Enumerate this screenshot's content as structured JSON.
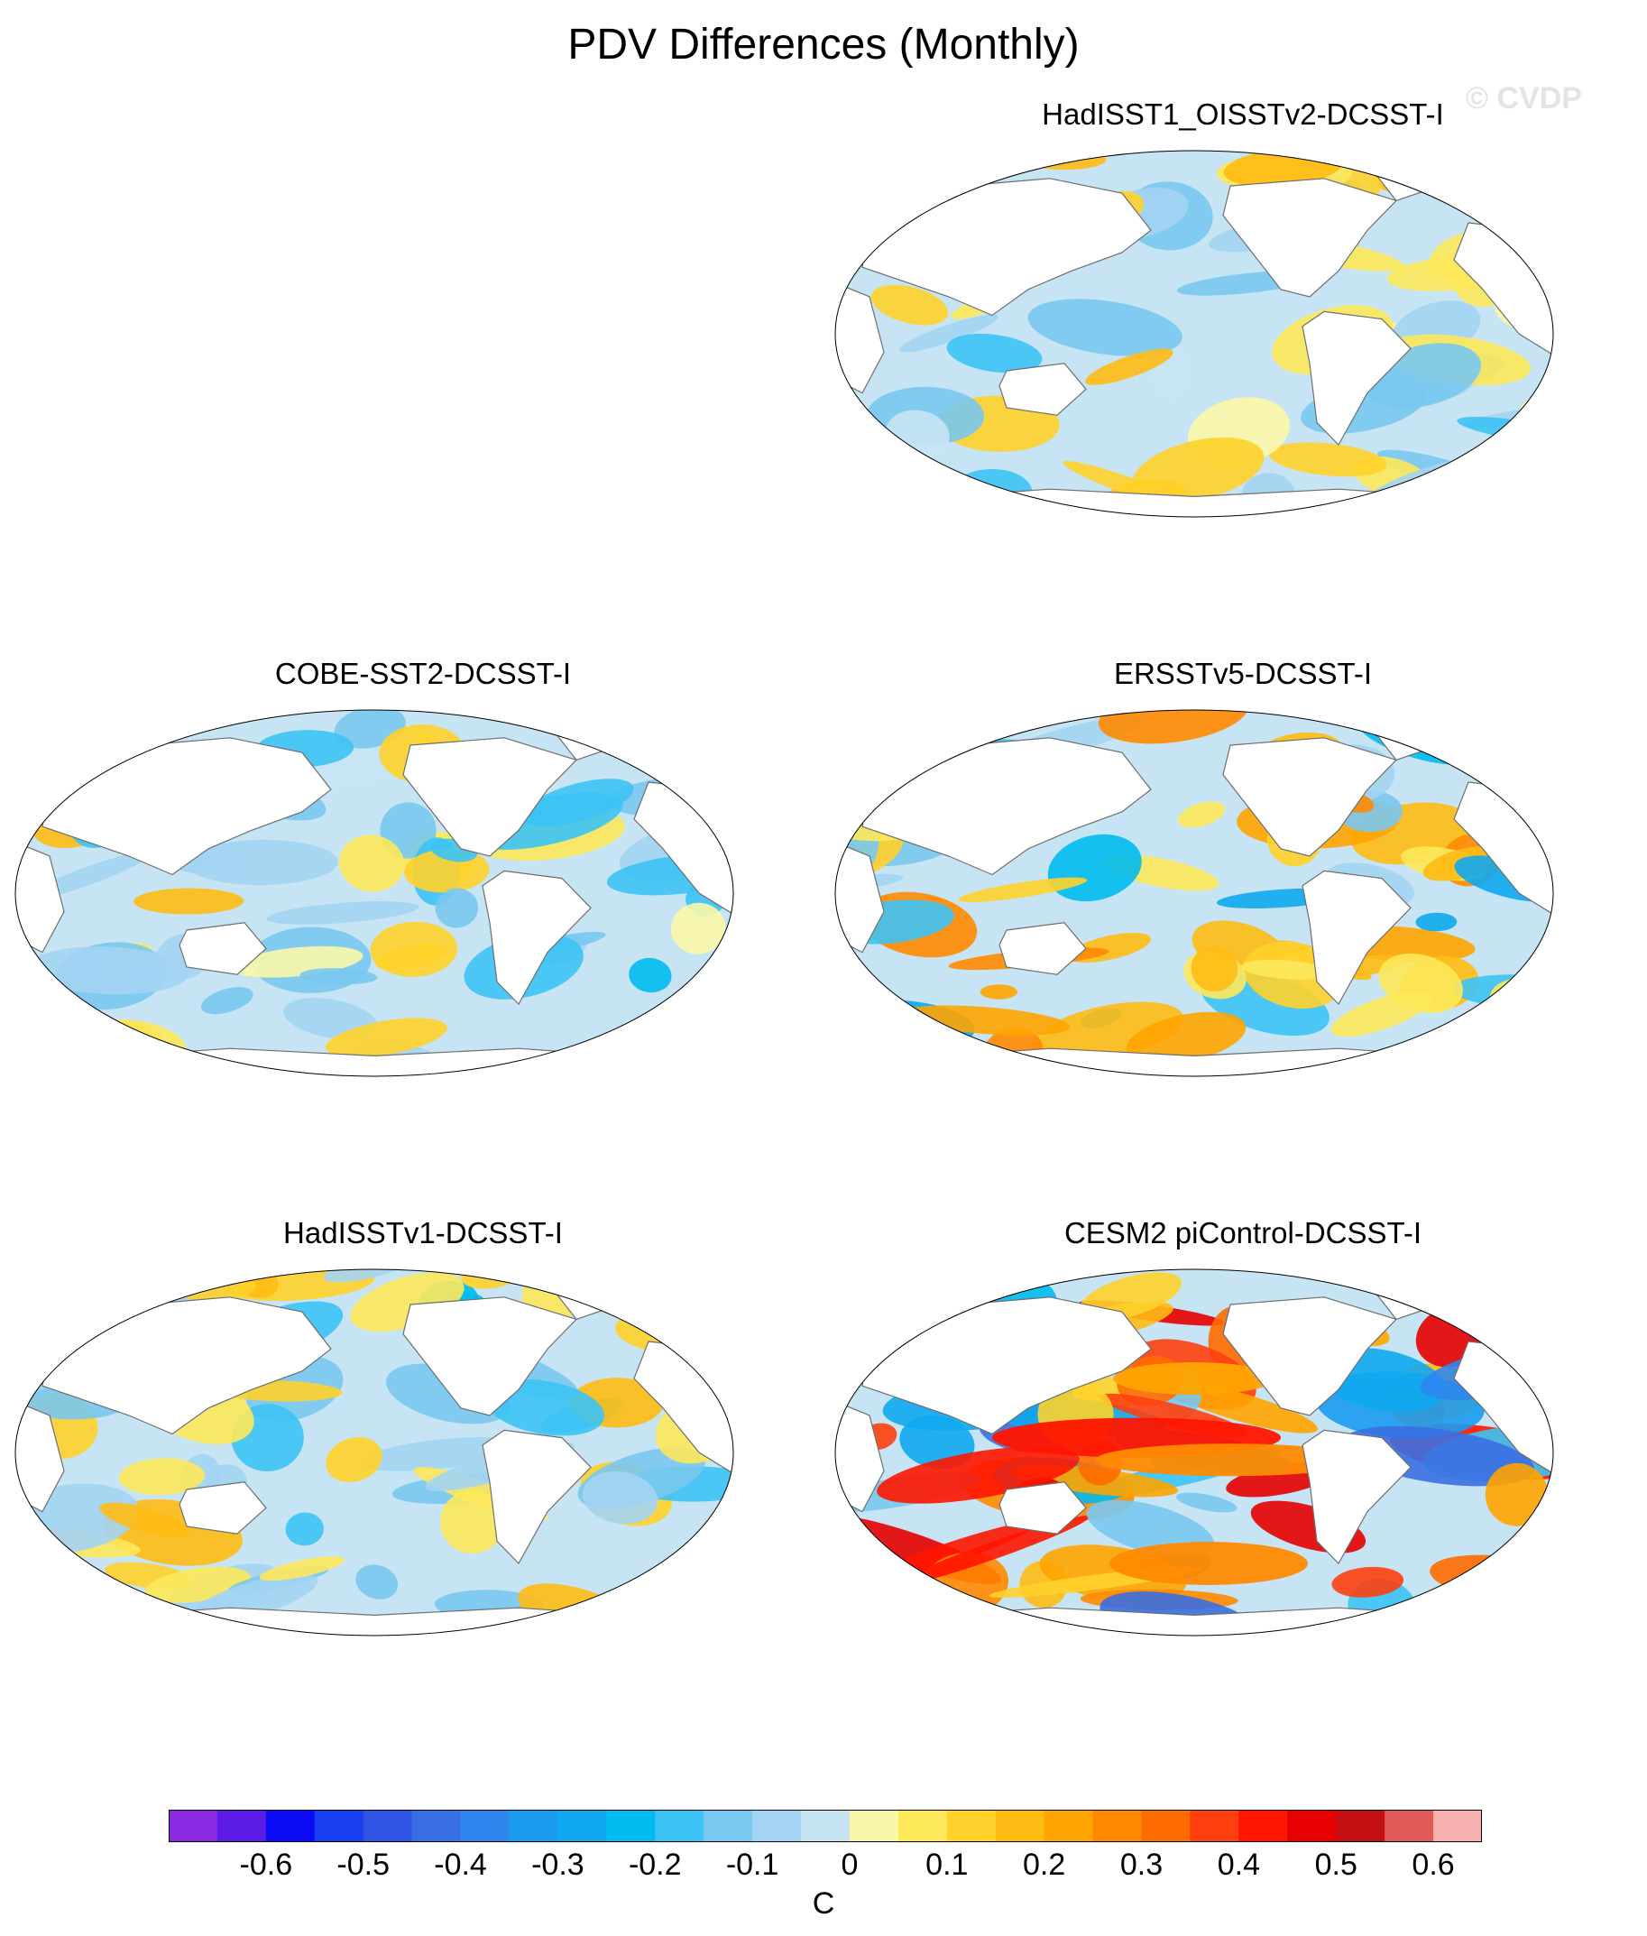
{
  "figure": {
    "title": "PDV Differences (Monthly)",
    "watermark": "© CVDP",
    "units": "C"
  },
  "panels": [
    {
      "id": "p1",
      "title": "HadISST1_OISSTv2-DCSST-I",
      "intensity": 0.35,
      "seed": 3
    },
    {
      "id": "p2",
      "title": "COBE-SST2-DCSST-I",
      "intensity": 0.4,
      "seed": 7
    },
    {
      "id": "p3",
      "title": "ERSSTv5-DCSST-I",
      "intensity": 0.55,
      "seed": 11
    },
    {
      "id": "p4",
      "title": "HadISSTv1-DCSST-I",
      "intensity": 0.4,
      "seed": 17
    },
    {
      "id": "p5",
      "title": "CESM2 piControl-DCSST-I",
      "intensity": 1.0,
      "seed": 23
    }
  ],
  "colorbar": {
    "colors": [
      "#8a2be2",
      "#5a1be6",
      "#0b0bf5",
      "#1b3ff0",
      "#2e55e6",
      "#3a6fe2",
      "#2f86ee",
      "#1a9bf0",
      "#10a9ef",
      "#00bbee",
      "#3cc3f5",
      "#79c8ef",
      "#a3d4f3",
      "#c6e4f4",
      "#fbf7a9",
      "#fde85a",
      "#ffd12a",
      "#ffbb14",
      "#ffa400",
      "#ff8a00",
      "#ff6b00",
      "#ff3f10",
      "#ff1500",
      "#e60000",
      "#c41010",
      "#e05a5a",
      "#f7b0b0"
    ],
    "tick_labels": [
      "-0.6",
      "-0.5",
      "-0.4",
      "-0.3",
      "-0.2",
      "-0.1",
      "0",
      "0.1",
      "0.2",
      "0.3",
      "0.4",
      "0.5",
      "0.6"
    ]
  }
}
